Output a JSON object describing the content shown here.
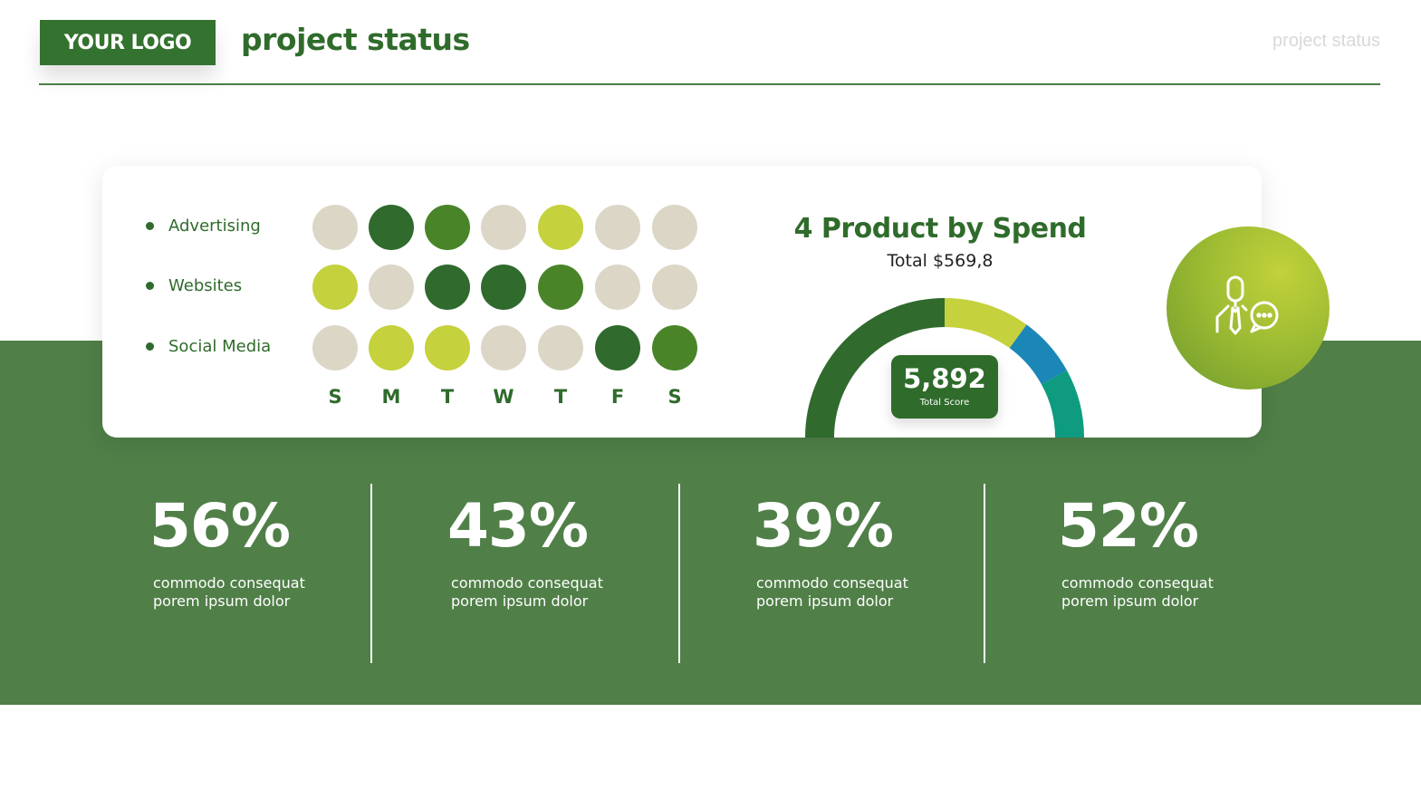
{
  "header": {
    "logo_text": "YOUR LOGO",
    "title": "project status",
    "corner_label": "project status"
  },
  "activity": {
    "days": [
      "S",
      "M",
      "T",
      "W",
      "T",
      "F",
      "S"
    ],
    "legend": {
      "beige": "#dcd6c7",
      "lime": "#c5d13d",
      "mid_green": "#4a8429",
      "dark_green": "#306a2d"
    },
    "rows": [
      {
        "label": "Advertising",
        "dots": [
          "beige",
          "dark_green",
          "mid_green",
          "beige",
          "lime",
          "beige",
          "beige"
        ]
      },
      {
        "label": "Websites",
        "dots": [
          "lime",
          "beige",
          "dark_green",
          "dark_green",
          "mid_green",
          "beige",
          "beige"
        ]
      },
      {
        "label": "Social Media",
        "dots": [
          "beige",
          "lime",
          "lime",
          "beige",
          "beige",
          "dark_green",
          "mid_green"
        ]
      }
    ]
  },
  "gauge": {
    "title": "4 Product by Spend",
    "subtitle": "Total $569,8",
    "score": "5,892",
    "score_label": "Total Score",
    "segments": [
      {
        "value": 50,
        "color": "#306a2d"
      },
      {
        "value": 20,
        "color": "#c5d13d"
      },
      {
        "value": 14,
        "color": "#1b87b7"
      },
      {
        "value": 16,
        "color": "#0e9b80"
      }
    ]
  },
  "badge": {
    "icon": "person-chat-icon"
  },
  "stats": [
    {
      "value": "56%",
      "line1": "commodo consequat",
      "line2": "porem ipsum dolor"
    },
    {
      "value": "43%",
      "line1": "commodo consequat",
      "line2": "porem ipsum dolor"
    },
    {
      "value": "39%",
      "line1": "commodo consequat",
      "line2": "porem ipsum dolor"
    },
    {
      "value": "52%",
      "line1": "commodo consequat",
      "line2": "porem ipsum dolor"
    }
  ]
}
